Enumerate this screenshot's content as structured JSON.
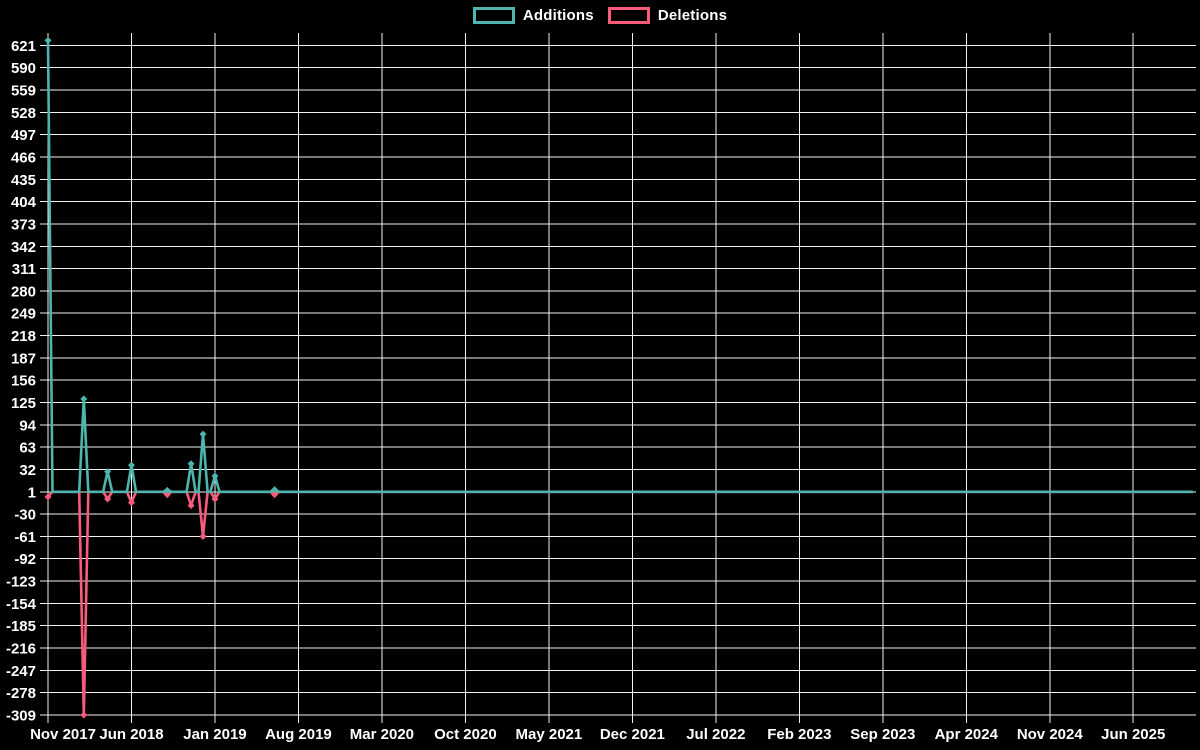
{
  "chart_data": {
    "type": "line",
    "title": "",
    "legend_position": "top-center",
    "grid": true,
    "marker_style": "diamond",
    "colors": {
      "background": "#000000",
      "grid": "#f2f2f2",
      "text": "#ffffff",
      "additions": "#4db5ad",
      "deletions": "#f75c7c"
    },
    "x_axis": {
      "type": "time",
      "tick_labels": [
        "Nov 2017",
        "Jun 2018",
        "Jan 2019",
        "Aug 2019",
        "Mar 2020",
        "Oct 2020",
        "May 2021",
        "Dec 2021",
        "Jul 2022",
        "Feb 2023",
        "Sep 2023",
        "Apr 2024",
        "Nov 2024",
        "Jun 2025"
      ],
      "tick_interval_months": 7,
      "months_span": 96
    },
    "y_axis": {
      "min": -309,
      "max": 628,
      "tick_step": 31,
      "ticks": [
        621,
        590,
        559,
        528,
        497,
        466,
        435,
        404,
        373,
        342,
        311,
        280,
        249,
        218,
        187,
        156,
        125,
        94,
        63,
        32,
        1,
        -30,
        -61,
        -92,
        -123,
        -154,
        -185,
        -216,
        -247,
        -278,
        -309
      ]
    },
    "baseline_value": 1,
    "series": [
      {
        "name": "Additions",
        "color": "#4db5ad",
        "events": [
          {
            "month": "Nov 2017",
            "t": 0,
            "value": 628
          },
          {
            "month": "Feb 2018",
            "t": 3,
            "value": 130
          },
          {
            "month": "Apr 2018",
            "t": 5,
            "value": 29
          },
          {
            "month": "Jun 2018",
            "t": 7,
            "value": 38
          },
          {
            "month": "Sep 2018",
            "t": 10,
            "value": 3
          },
          {
            "month": "Nov 2018",
            "t": 12,
            "value": 40
          },
          {
            "month": "Dec 2018",
            "t": 13,
            "value": 81
          },
          {
            "month": "Jan 2019",
            "t": 14,
            "value": 23
          },
          {
            "month": "Jun 2019",
            "t": 19,
            "value": 4
          }
        ]
      },
      {
        "name": "Deletions",
        "color": "#f75c7c",
        "events": [
          {
            "month": "Nov 2017",
            "t": 0,
            "value": -6
          },
          {
            "month": "Feb 2018",
            "t": 3,
            "value": -309
          },
          {
            "month": "Apr 2018",
            "t": 5,
            "value": -9
          },
          {
            "month": "Jun 2018",
            "t": 7,
            "value": -14
          },
          {
            "month": "Sep 2018",
            "t": 10,
            "value": -3
          },
          {
            "month": "Nov 2018",
            "t": 12,
            "value": -18
          },
          {
            "month": "Dec 2018",
            "t": 13,
            "value": -61
          },
          {
            "month": "Jan 2019",
            "t": 14,
            "value": -9
          },
          {
            "month": "Jun 2019",
            "t": 19,
            "value": -3
          }
        ]
      }
    ]
  }
}
